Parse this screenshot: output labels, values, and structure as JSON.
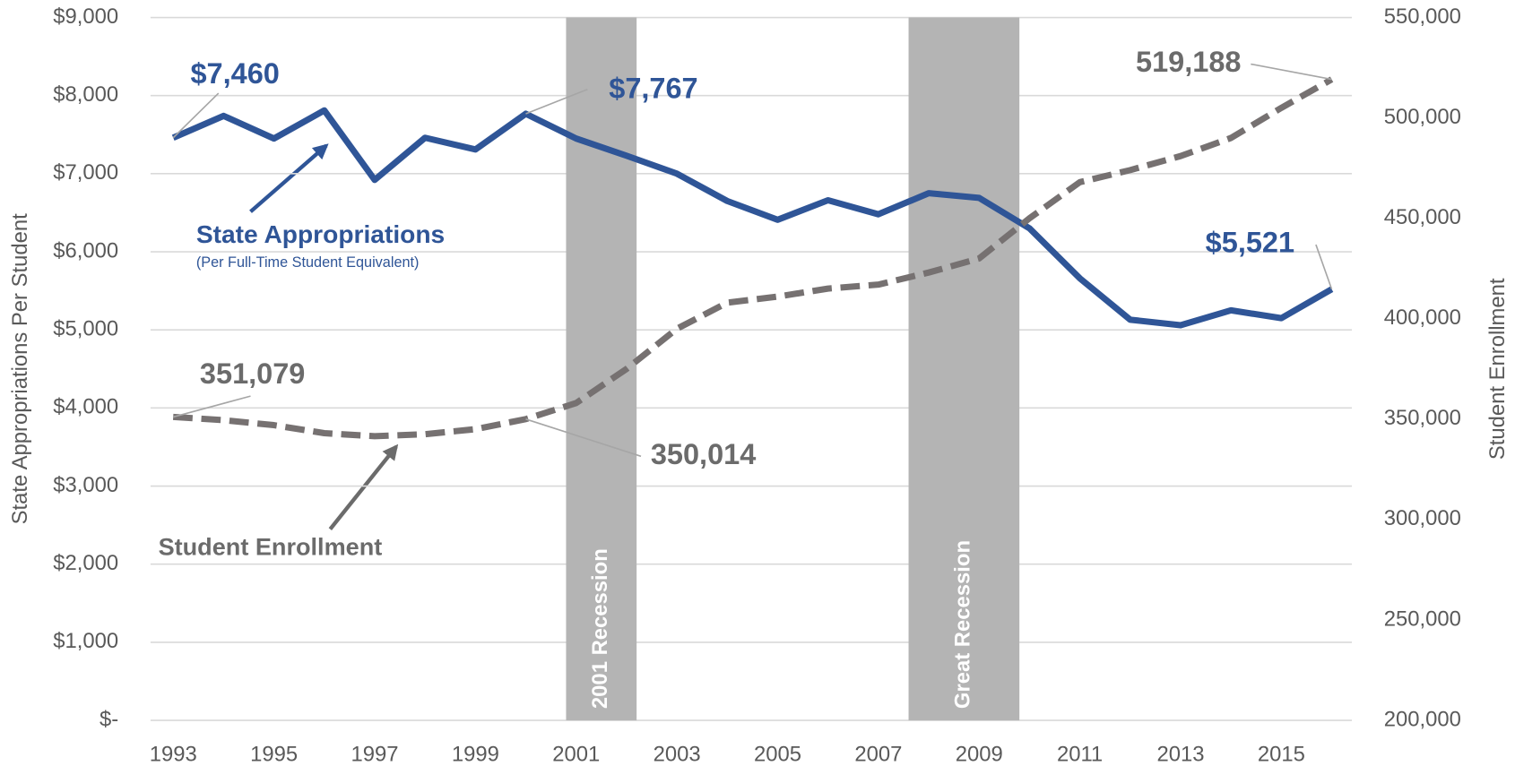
{
  "chart_data": {
    "type": "line",
    "x": [
      1993,
      1994,
      1995,
      1996,
      1997,
      1998,
      1999,
      2000,
      2001,
      2002,
      2003,
      2004,
      2005,
      2006,
      2007,
      2008,
      2009,
      2010,
      2011,
      2012,
      2013,
      2014,
      2015,
      2016
    ],
    "xlim": [
      1992.55,
      2016.4
    ],
    "xticks": [
      1993,
      1995,
      1997,
      1999,
      2001,
      2003,
      2005,
      2007,
      2009,
      2011,
      2013,
      2015
    ],
    "ylim": [
      0,
      9000
    ],
    "yticks": [
      {
        "value": 0,
        "label": "$-"
      },
      {
        "value": 1000,
        "label": "$1,000"
      },
      {
        "value": 2000,
        "label": "$2,000"
      },
      {
        "value": 3000,
        "label": "$3,000"
      },
      {
        "value": 4000,
        "label": "$4,000"
      },
      {
        "value": 5000,
        "label": "$5,000"
      },
      {
        "value": 6000,
        "label": "$6,000"
      },
      {
        "value": 7000,
        "label": "$7,000"
      },
      {
        "value": 8000,
        "label": "$8,000"
      },
      {
        "value": 9000,
        "label": "$9,000"
      }
    ],
    "y2lim": [
      200000,
      550000
    ],
    "y2ticks": [
      {
        "value": 200000,
        "label": "200,000"
      },
      {
        "value": 250000,
        "label": "250,000"
      },
      {
        "value": 300000,
        "label": "300,000"
      },
      {
        "value": 350000,
        "label": "350,000"
      },
      {
        "value": 400000,
        "label": "400,000"
      },
      {
        "value": 450000,
        "label": "450,000"
      },
      {
        "value": 500000,
        "label": "500,000"
      },
      {
        "value": 550000,
        "label": "550,000"
      }
    ],
    "ylabel": "State Appropriations Per Student",
    "y2label": "Student Enrollment",
    "grid": true,
    "series": [
      {
        "name": "State Appropriations",
        "color": "#2f5597",
        "axis": "y",
        "subtitle": "(Per Full-Time Student Equivalent)",
        "values": [
          7460,
          7740,
          7450,
          7810,
          6920,
          7460,
          7310,
          7767,
          7450,
          7230,
          7000,
          6650,
          6410,
          6660,
          6480,
          6750,
          6690,
          6300,
          5660,
          5130,
          5060,
          5250,
          5150,
          5521
        ],
        "value_labels": [
          "$7,460",
          null,
          null,
          null,
          null,
          null,
          null,
          "$7,767",
          null,
          null,
          null,
          null,
          null,
          null,
          null,
          null,
          null,
          null,
          null,
          null,
          null,
          null,
          null,
          "$5,521"
        ]
      },
      {
        "name": "Student Enrollment",
        "color": "#767171",
        "axis": "y2",
        "dashed": true,
        "values": [
          351079,
          349500,
          347000,
          343000,
          341500,
          342500,
          345000,
          350014,
          358000,
          375000,
          395000,
          408000,
          411000,
          415000,
          417000,
          423000,
          430000,
          450000,
          468000,
          474000,
          481000,
          490000,
          505000,
          519188
        ],
        "value_labels": [
          "351,079",
          null,
          null,
          null,
          null,
          null,
          null,
          "350,014",
          null,
          null,
          null,
          null,
          null,
          null,
          null,
          null,
          null,
          null,
          null,
          null,
          null,
          null,
          null,
          "519,188"
        ]
      }
    ],
    "bands": [
      {
        "label": "2001 Recession",
        "x": [
          2000.8,
          2002.2
        ]
      },
      {
        "label": "Great Recession",
        "x": [
          2007.6,
          2009.8
        ]
      }
    ]
  }
}
